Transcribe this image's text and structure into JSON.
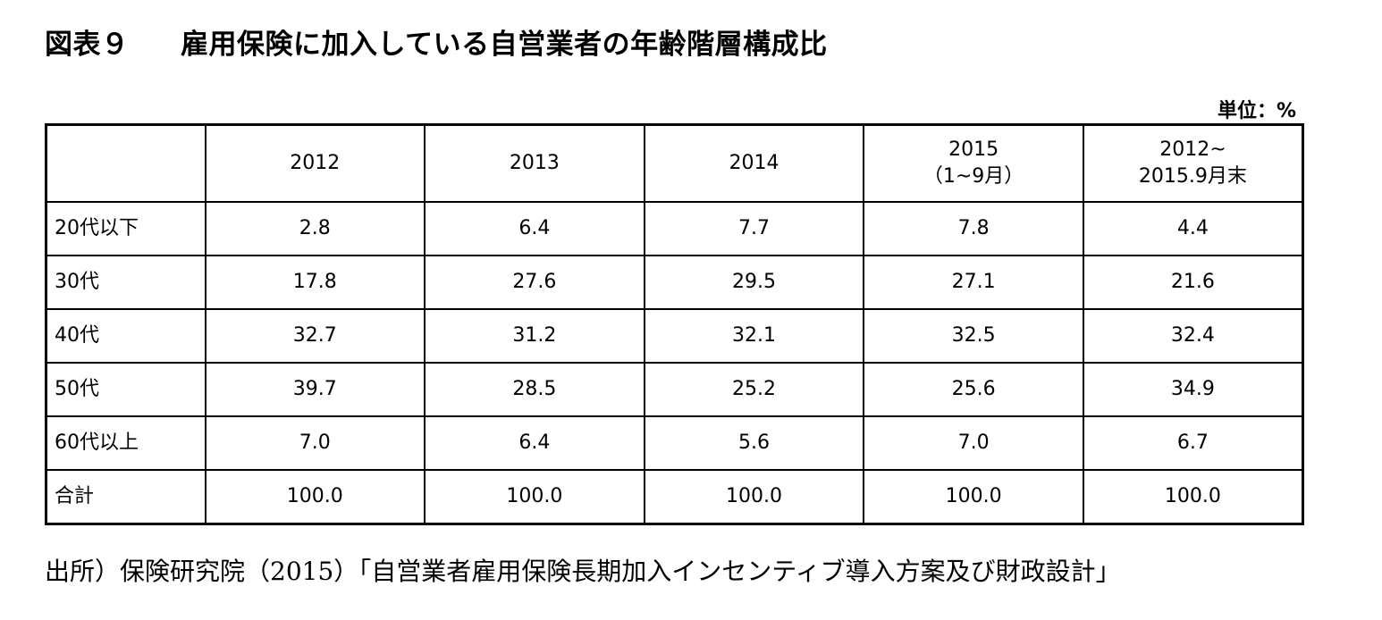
{
  "title": {
    "figure_number": "図表９",
    "text": "雇用保険に加入している自営業者の年齢階層構成比"
  },
  "unit_label": "単位：%",
  "table": {
    "corner": "",
    "columns": [
      {
        "line1": "2012",
        "line2": ""
      },
      {
        "line1": "2013",
        "line2": ""
      },
      {
        "line1": "2014",
        "line2": ""
      },
      {
        "line1": "2015",
        "line2": "（1~9月）"
      },
      {
        "line1": "2012~",
        "line2": "2015.9月末"
      }
    ],
    "rows": [
      {
        "label": "20代以下",
        "values": [
          "2.8",
          "6.4",
          "7.7",
          "7.8",
          "4.4"
        ]
      },
      {
        "label": "30代",
        "values": [
          "17.8",
          "27.6",
          "29.5",
          "27.1",
          "21.6"
        ]
      },
      {
        "label": "40代",
        "values": [
          "32.7",
          "31.2",
          "32.1",
          "32.5",
          "32.4"
        ]
      },
      {
        "label": "50代",
        "values": [
          "39.7",
          "28.5",
          "25.2",
          "25.6",
          "34.9"
        ]
      },
      {
        "label": "60代以上",
        "values": [
          "7.0",
          "6.4",
          "5.6",
          "7.0",
          "6.7"
        ]
      },
      {
        "label": "合計",
        "values": [
          "100.0",
          "100.0",
          "100.0",
          "100.0",
          "100.0"
        ]
      }
    ]
  },
  "source_note": "出所）保険研究院（2015）「自営業者雇用保険長期加入インセンティブ導入方案及び財政設計」"
}
